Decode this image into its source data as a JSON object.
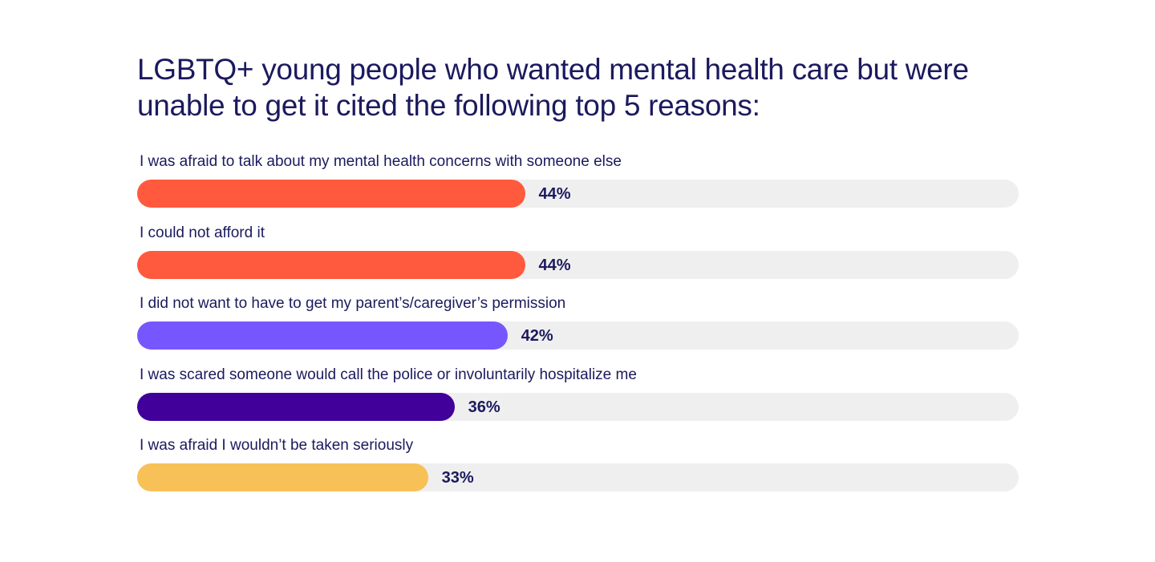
{
  "chart_data": {
    "type": "bar",
    "orientation": "horizontal",
    "title": "LGBTQ+ young people who wanted mental health care but were unable to get it cited the following top 5 reasons:",
    "xlim": [
      0,
      100
    ],
    "grid": false,
    "legend": "none",
    "categories": [
      "I was afraid to talk about my mental health concerns with someone else",
      "I could not afford it",
      "I did not want to have to get my parent’s/caregiver’s permission",
      "I was scared someone would call the police or involuntarily hospitalize me",
      "I was afraid I wouldn’t be taken seriously"
    ],
    "values": [
      44,
      44,
      42,
      36,
      33
    ],
    "data_labels": [
      "44%",
      "44%",
      "42%",
      "36%",
      "33%"
    ],
    "bar_colors": [
      "#ff5a3d",
      "#ff5a3d",
      "#7657ff",
      "#400099",
      "#f8c157"
    ],
    "track_color": "#efefef",
    "text_color": "#1b1a5e"
  }
}
